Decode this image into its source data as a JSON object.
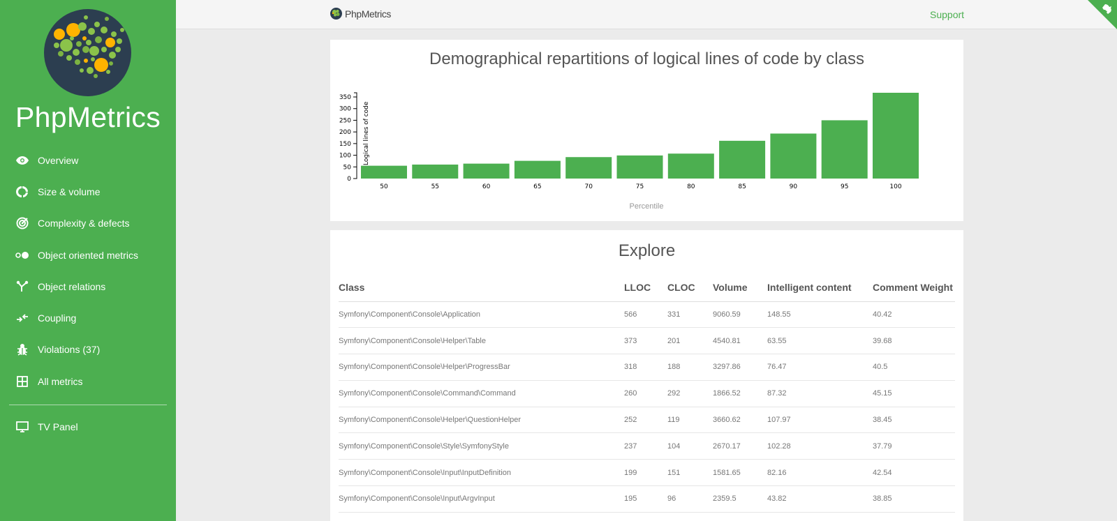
{
  "sidebar": {
    "brand": "PhpMetrics",
    "items": [
      {
        "label": "Overview",
        "icon": "eye-icon"
      },
      {
        "label": "Size & volume",
        "icon": "donut-icon"
      },
      {
        "label": "Complexity & defects",
        "icon": "target-icon"
      },
      {
        "label": "Object oriented metrics",
        "icon": "toggle-dots-icon"
      },
      {
        "label": "Object relations",
        "icon": "graph-icon"
      },
      {
        "label": "Coupling",
        "icon": "arrows-icon"
      },
      {
        "label": "Violations (37)",
        "icon": "bug-icon"
      },
      {
        "label": "All metrics",
        "icon": "grid-icon"
      }
    ],
    "tv_panel": {
      "label": "TV Panel",
      "icon": "monitor-icon"
    }
  },
  "topbar": {
    "logo_text": "PhpMetrics",
    "support_label": "Support"
  },
  "chart_data": {
    "type": "bar",
    "title": "Demographical repartitions of logical lines of code by class",
    "xlabel": "Percentile",
    "ylabel": "Logical lines of code",
    "categories": [
      "50",
      "55",
      "60",
      "65",
      "70",
      "75",
      "80",
      "85",
      "90",
      "95",
      "100"
    ],
    "values": [
      55,
      60,
      64,
      76,
      92,
      99,
      107,
      162,
      193,
      250,
      368
    ],
    "yticks": [
      0,
      50,
      100,
      150,
      200,
      250,
      300,
      350
    ],
    "ylim": [
      0,
      368
    ],
    "color": "#4caf50"
  },
  "explore": {
    "title": "Explore",
    "columns": [
      "Class",
      "LLOC",
      "CLOC",
      "Volume",
      "Intelligent content",
      "Comment Weight"
    ],
    "rows": [
      [
        "Symfony\\Component\\Console\\Application",
        "566",
        "331",
        "9060.59",
        "148.55",
        "40.42"
      ],
      [
        "Symfony\\Component\\Console\\Helper\\Table",
        "373",
        "201",
        "4540.81",
        "63.55",
        "39.68"
      ],
      [
        "Symfony\\Component\\Console\\Helper\\ProgressBar",
        "318",
        "188",
        "3297.86",
        "76.47",
        "40.5"
      ],
      [
        "Symfony\\Component\\Console\\Command\\Command",
        "260",
        "292",
        "1866.52",
        "87.32",
        "45.15"
      ],
      [
        "Symfony\\Component\\Console\\Helper\\QuestionHelper",
        "252",
        "119",
        "3660.62",
        "107.97",
        "38.45"
      ],
      [
        "Symfony\\Component\\Console\\Style\\SymfonyStyle",
        "237",
        "104",
        "2670.17",
        "102.28",
        "37.79"
      ],
      [
        "Symfony\\Component\\Console\\Input\\InputDefinition",
        "199",
        "151",
        "1581.65",
        "82.16",
        "42.54"
      ],
      [
        "Symfony\\Component\\Console\\Input\\ArgvInput",
        "195",
        "96",
        "2359.5",
        "43.82",
        "38.85"
      ]
    ]
  }
}
